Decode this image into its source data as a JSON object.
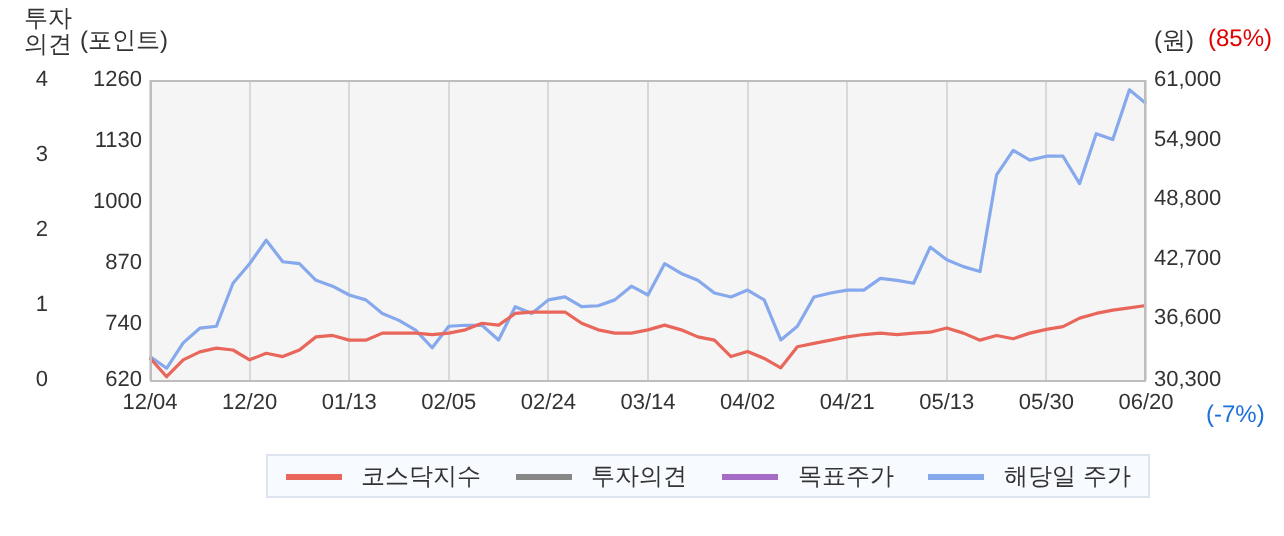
{
  "chart_data": {
    "type": "line",
    "categories": [
      "12/04",
      null,
      null,
      null,
      null,
      null,
      "12/20",
      null,
      null,
      null,
      null,
      null,
      "01/13",
      null,
      null,
      null,
      null,
      null,
      "02/05",
      null,
      null,
      null,
      null,
      null,
      "02/24",
      null,
      null,
      null,
      null,
      null,
      "03/14",
      null,
      null,
      null,
      null,
      null,
      "04/02",
      null,
      null,
      null,
      null,
      null,
      "04/21",
      null,
      null,
      null,
      null,
      null,
      "05/13",
      null,
      null,
      null,
      null,
      null,
      "05/30",
      null,
      null,
      null,
      null,
      null,
      "06/20"
    ],
    "series": [
      {
        "name": "코스닥지수",
        "color": "#e8675a",
        "values": [
          667,
          627,
          663,
          680,
          688,
          684,
          663,
          677,
          670,
          684,
          712,
          715,
          705,
          705,
          720,
          720,
          720,
          717,
          720,
          727,
          741,
          737,
          762,
          765,
          765,
          765,
          741,
          727,
          720,
          720,
          727,
          737,
          727,
          712,
          705,
          670,
          681,
          666,
          646,
          691,
          698,
          705,
          712,
          717,
          720,
          717,
          720,
          722,
          731,
          720,
          705,
          715,
          708,
          720,
          728,
          734,
          752,
          762,
          769,
          774,
          779
        ]
      },
      {
        "name": "투자의견",
        "color": "#888888",
        "axis": "y3",
        "values": [
          null,
          null,
          null,
          null,
          null,
          null,
          null,
          null,
          null,
          null,
          null,
          null,
          null,
          null,
          null,
          null,
          null,
          null,
          null,
          null,
          null,
          null,
          null,
          null,
          null,
          null,
          null,
          null,
          null,
          null,
          null,
          null,
          null,
          null,
          null,
          null,
          null,
          null,
          null,
          null,
          null,
          null,
          null,
          null,
          null,
          null,
          null,
          null,
          null,
          null,
          null,
          null,
          null,
          null,
          null,
          null,
          null,
          null,
          null,
          null,
          null
        ]
      },
      {
        "name": "목표주가",
        "color": "#a66cc8",
        "axis": "y2",
        "values": [
          null,
          null,
          null,
          null,
          null,
          null,
          null,
          null,
          null,
          null,
          null,
          null,
          null,
          null,
          null,
          null,
          null,
          null,
          null,
          null,
          null,
          null,
          null,
          null,
          null,
          null,
          null,
          null,
          null,
          null,
          null,
          null,
          null,
          null,
          null,
          null,
          null,
          null,
          null,
          null,
          null,
          null,
          null,
          null,
          null,
          null,
          null,
          null,
          null,
          null,
          null,
          null,
          null,
          null,
          null,
          null,
          null,
          null,
          null,
          null,
          null
        ]
      },
      {
        "name": "해당일 주가",
        "color": "#86a8ec",
        "axis": "y2",
        "values": [
          32700,
          31500,
          34100,
          35600,
          35800,
          40200,
          42200,
          44600,
          42400,
          42200,
          40500,
          39900,
          39000,
          38500,
          37100,
          36400,
          35400,
          33600,
          35800,
          35900,
          35900,
          34400,
          37800,
          37100,
          38500,
          38800,
          37800,
          37900,
          38500,
          39900,
          39000,
          42200,
          41200,
          40500,
          39200,
          38800,
          39500,
          38500,
          34400,
          35800,
          38800,
          39200,
          39500,
          39500,
          40700,
          40500,
          40200,
          43900,
          42600,
          41900,
          41400,
          51300,
          53800,
          52800,
          53200,
          53200,
          50400,
          55500,
          54900,
          60000,
          58600
        ]
      }
    ],
    "ylim": [
      620,
      1260
    ],
    "yticks": [
      620,
      740,
      870,
      1000,
      1130,
      1260
    ],
    "y2lim": [
      30300,
      61000
    ],
    "y2ticks": [
      {
        "value": 30300,
        "label": "30,300"
      },
      {
        "value": 36600,
        "label": "36,600"
      },
      {
        "value": 42700,
        "label": "42,700"
      },
      {
        "value": 48800,
        "label": "48,800"
      },
      {
        "value": 54900,
        "label": "54,900"
      },
      {
        "value": 61000,
        "label": "61,000"
      }
    ],
    "y3lim": [
      0,
      4
    ],
    "y3ticks": [
      0,
      1,
      2,
      3,
      4
    ],
    "ylabel": "(포인트)",
    "y2label": "(원)",
    "y3label": "투자의견",
    "annotations": [
      "(85%)",
      "(-7%)"
    ],
    "grid": "x",
    "legend": "bottom"
  }
}
